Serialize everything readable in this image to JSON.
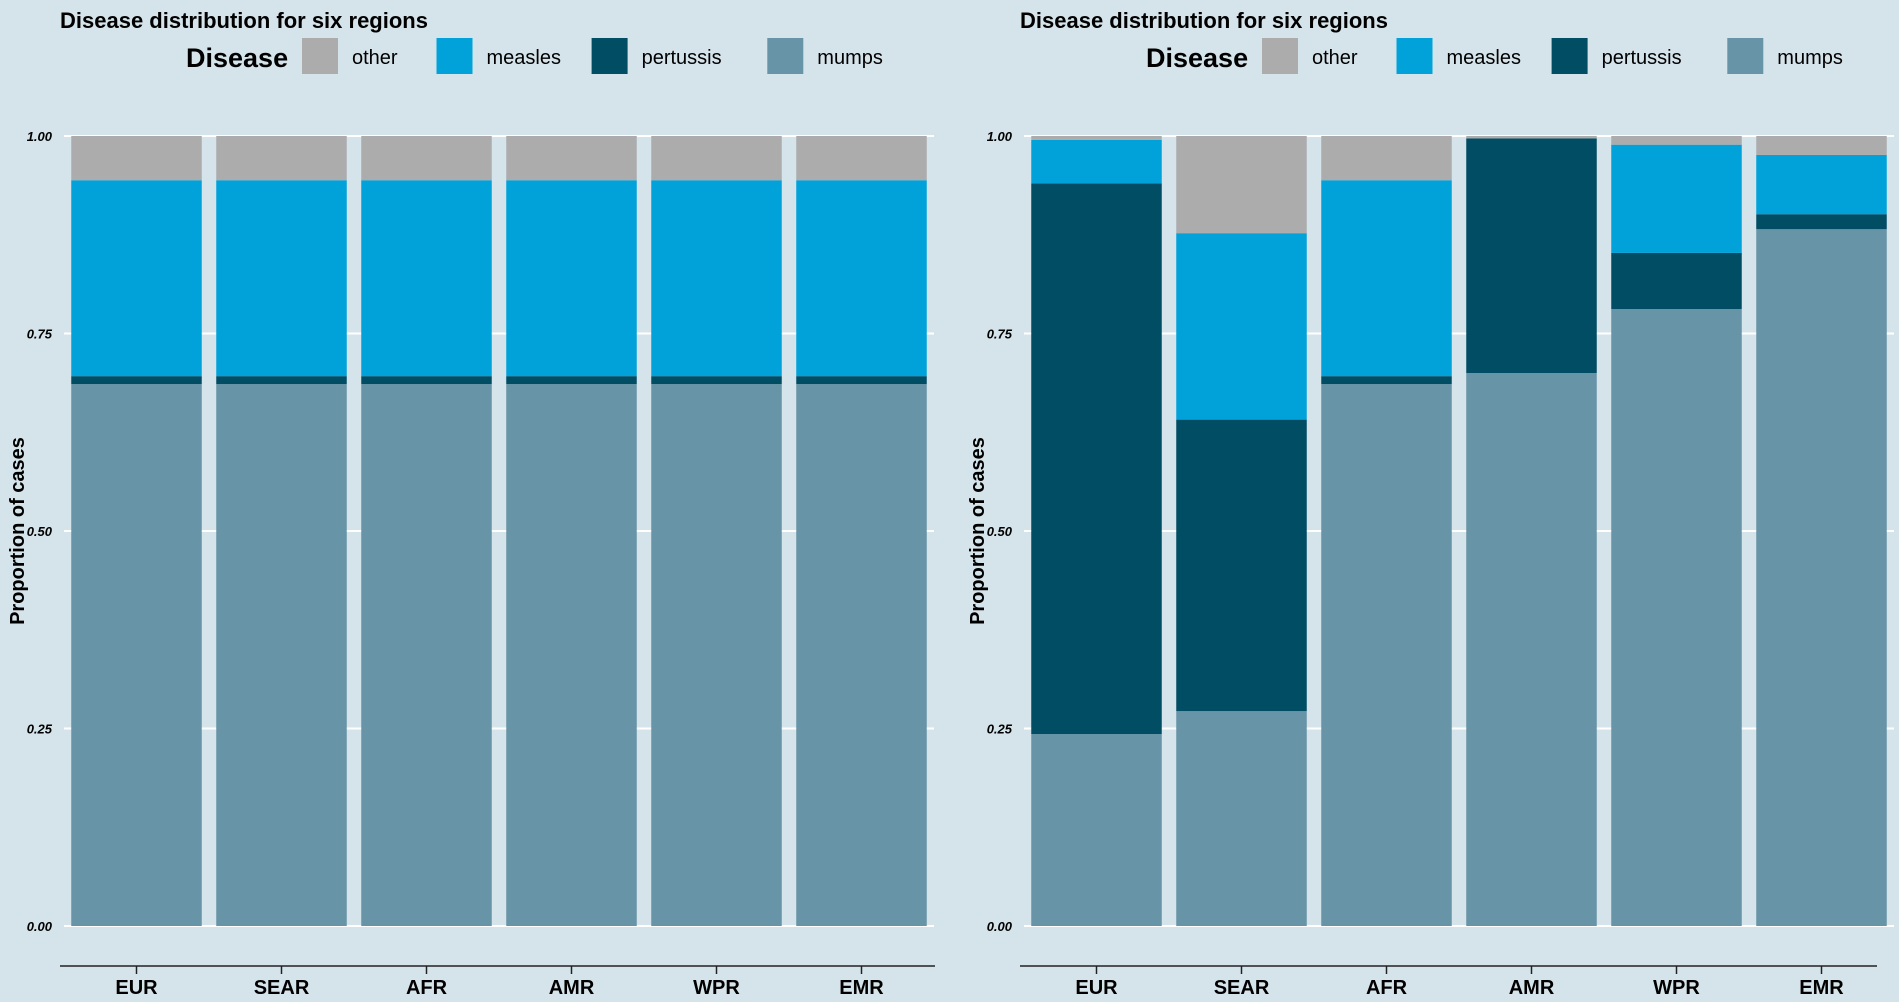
{
  "chart_data": [
    {
      "type": "bar",
      "stacked": true,
      "title": "Disease distribution for six regions",
      "legend_title": "Disease",
      "legend_position": "top",
      "ylabel": "Proportion of cases",
      "xlabel": "",
      "ylim": [
        0,
        1
      ],
      "yticks": [
        "0.00",
        "0.25",
        "0.50",
        "0.75",
        "1.00"
      ],
      "categories": [
        "EUR",
        "SEAR",
        "AFR",
        "AMR",
        "WPR",
        "EMR"
      ],
      "series": [
        {
          "name": "mumps",
          "color": "#6794a7",
          "values": [
            0.686,
            0.686,
            0.686,
            0.686,
            0.686,
            0.686
          ]
        },
        {
          "name": "pertussis",
          "color": "#014d64",
          "values": [
            0.01,
            0.01,
            0.01,
            0.01,
            0.01,
            0.01
          ]
        },
        {
          "name": "measles",
          "color": "#01a2d9",
          "values": [
            0.248,
            0.248,
            0.248,
            0.248,
            0.248,
            0.248
          ]
        },
        {
          "name": "other",
          "color": "#acacac",
          "values": [
            0.056,
            0.056,
            0.056,
            0.056,
            0.056,
            0.056
          ]
        }
      ],
      "legend_order": [
        "other",
        "measles",
        "pertussis",
        "mumps"
      ]
    },
    {
      "type": "bar",
      "stacked": true,
      "title": "Disease distribution for six regions",
      "legend_title": "Disease",
      "legend_position": "top",
      "ylabel": "Proportion of cases",
      "xlabel": "",
      "ylim": [
        0,
        1
      ],
      "yticks": [
        "0.00",
        "0.25",
        "0.50",
        "0.75",
        "1.00"
      ],
      "categories": [
        "EUR",
        "SEAR",
        "AFR",
        "AMR",
        "WPR",
        "EMR"
      ],
      "series": [
        {
          "name": "mumps",
          "color": "#6794a7",
          "values": [
            0.243,
            0.272,
            0.686,
            0.7,
            0.781,
            0.882
          ]
        },
        {
          "name": "pertussis",
          "color": "#014d64",
          "values": [
            0.697,
            0.369,
            0.01,
            0.297,
            0.071,
            0.019
          ]
        },
        {
          "name": "measles",
          "color": "#01a2d9",
          "values": [
            0.055,
            0.236,
            0.248,
            0.0,
            0.137,
            0.075
          ]
        },
        {
          "name": "other",
          "color": "#acacac",
          "values": [
            0.005,
            0.123,
            0.056,
            0.003,
            0.011,
            0.024
          ]
        }
      ],
      "legend_order": [
        "other",
        "measles",
        "pertussis",
        "mumps"
      ]
    }
  ]
}
